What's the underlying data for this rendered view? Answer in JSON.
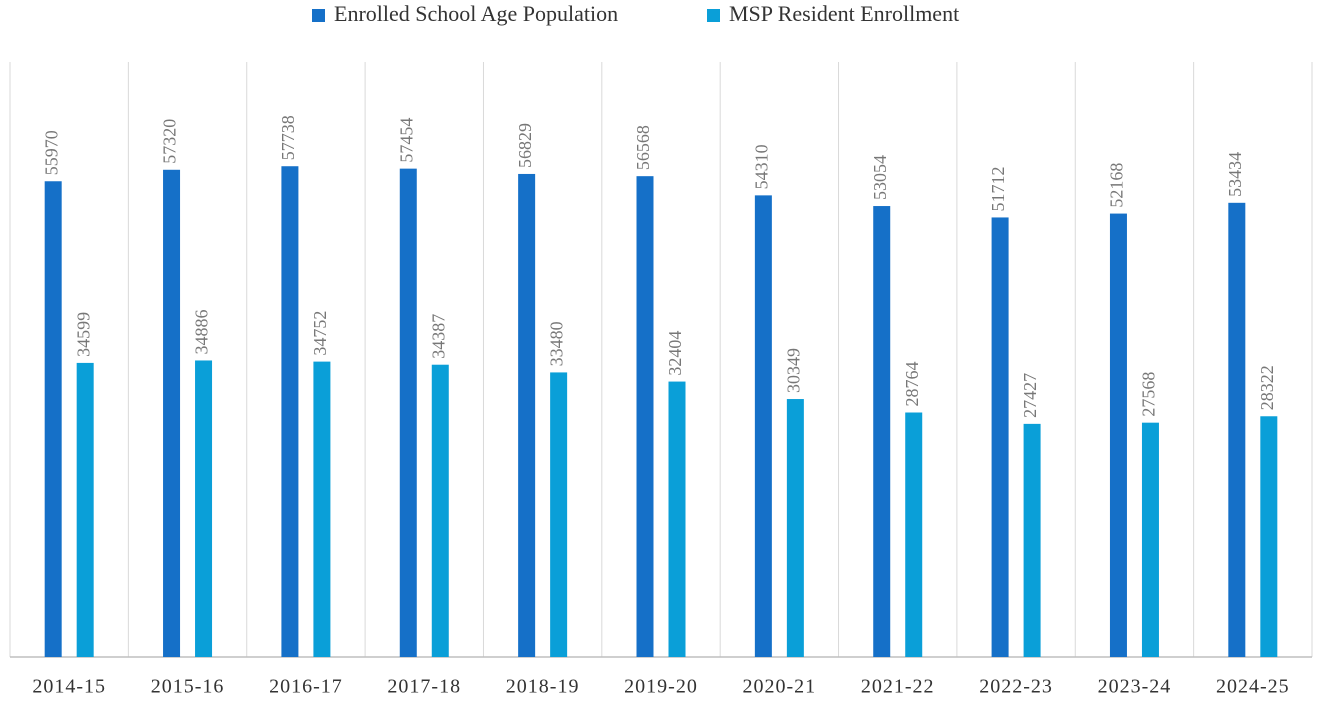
{
  "chart_data": {
    "type": "bar",
    "categories": [
      "2014-15",
      "2015-16",
      "2016-17",
      "2017-18",
      "2018-19",
      "2019-20",
      "2020-21",
      "2021-22",
      "2022-23",
      "2023-24",
      "2024-25"
    ],
    "series": [
      {
        "name": "Enrolled School Age Population",
        "color": "#1570c8",
        "values": [
          55970,
          57320,
          57738,
          57454,
          56829,
          56568,
          54310,
          53054,
          51712,
          52168,
          53434
        ]
      },
      {
        "name": "MSP Resident Enrollment",
        "color": "#0a9fd8",
        "values": [
          34599,
          34886,
          34752,
          34387,
          33480,
          32404,
          30349,
          28764,
          27427,
          27568,
          28322
        ]
      }
    ],
    "ylim": [
      0,
      70000
    ],
    "legend": "top",
    "data_labels": true
  }
}
